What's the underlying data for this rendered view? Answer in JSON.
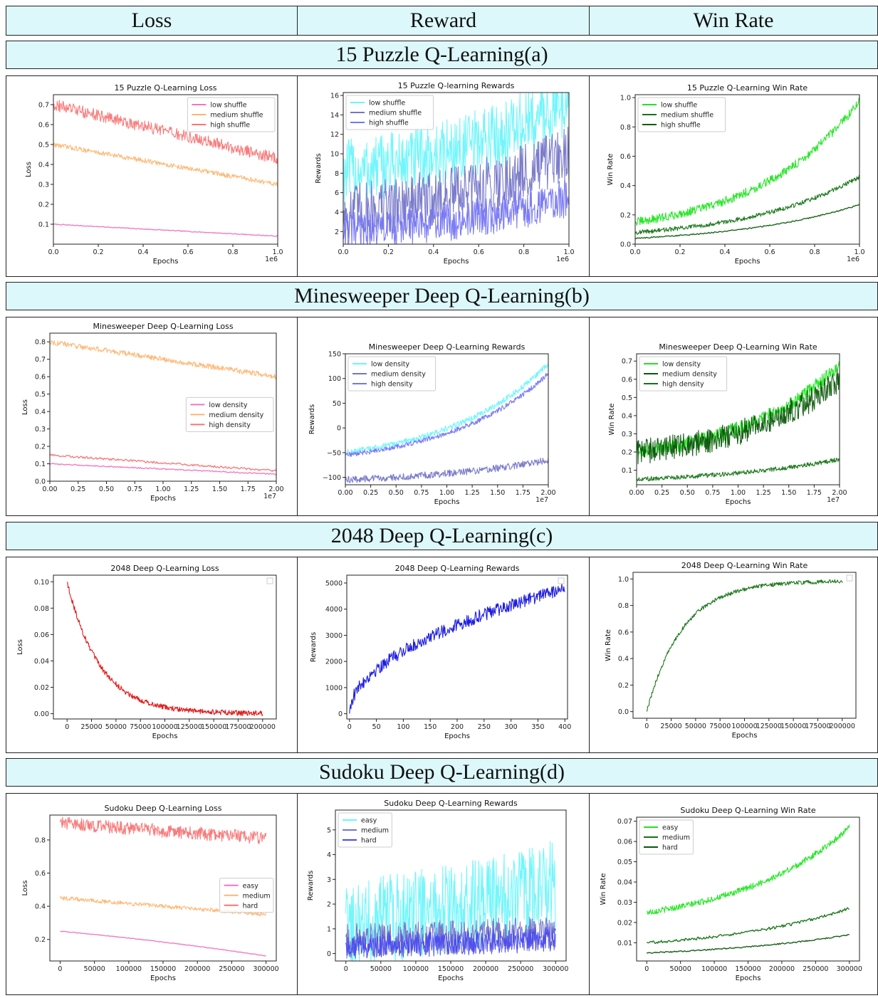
{
  "headers": [
    "Loss",
    "Reward",
    "Win Rate"
  ],
  "sections": [
    "15 Puzzle Q-Learning(a)",
    "Minesweeper Deep Q-Learning(b)",
    "2048 Deep Q-Learning(c)",
    "Sudoku Deep Q-Learning(d)"
  ],
  "chart_data": [
    {
      "id": "a-loss",
      "type": "line",
      "title": "15 Puzzle Q-Learning Loss",
      "xlabel": "Epochs",
      "ylabel": "Loss",
      "xlim": [
        0,
        1
      ],
      "ylim": [
        0.0,
        0.75
      ],
      "xticks": [
        0,
        0.2,
        0.4,
        0.6,
        0.8,
        1.0
      ],
      "xtick_labels": [
        "0.0",
        "0.2",
        "0.4",
        "0.6",
        "0.8",
        "1.0"
      ],
      "yticks": [
        0.1,
        0.2,
        0.3,
        0.4,
        0.5,
        0.6,
        0.7
      ],
      "ytick_labels": [
        "0.1",
        "0.2",
        "0.3",
        "0.4",
        "0.5",
        "0.6",
        "0.7"
      ],
      "x_offset": "1e6",
      "legend_loc": "upper-right",
      "series": [
        {
          "name": "low shuffle",
          "color": "#f075c0",
          "start": 0.1,
          "end": 0.04,
          "noise": 0.002,
          "curve": 0
        },
        {
          "name": "medium shuffle",
          "color": "#fdb673",
          "start": 0.5,
          "end": 0.3,
          "noise": 0.012,
          "curve": 0
        },
        {
          "name": "high shuffle",
          "color": "#f87575",
          "start": 0.7,
          "end": 0.43,
          "noise": 0.03,
          "curve": 0
        }
      ]
    },
    {
      "id": "a-reward",
      "type": "line",
      "title": "15 Puzzle Q-learning Rewards",
      "xlabel": "Epochs",
      "ylabel": "Rewards",
      "xlim": [
        0,
        1
      ],
      "ylim": [
        0.7,
        16.3
      ],
      "xticks": [
        0,
        0.2,
        0.4,
        0.6,
        0.8,
        1.0
      ],
      "xtick_labels": [
        "0.0",
        "0.2",
        "0.4",
        "0.6",
        "0.8",
        "1.0"
      ],
      "yticks": [
        2,
        4,
        6,
        8,
        10,
        12,
        14,
        16
      ],
      "ytick_labels": [
        "2",
        "4",
        "6",
        "8",
        "10",
        "12",
        "14",
        "16"
      ],
      "x_offset": "1e6",
      "legend_loc": "upper-left",
      "series": [
        {
          "name": "low shuffle",
          "color": "#6af5fb",
          "start": 8,
          "end": 15.5,
          "noise": 3.5,
          "curve": 1.5
        },
        {
          "name": "medium shuffle",
          "color": "#7575c8",
          "start": 4,
          "end": 10,
          "noise": 3,
          "curve": 1.5
        },
        {
          "name": "high shuffle",
          "color": "#7575f5",
          "start": 2,
          "end": 5.5,
          "noise": 2,
          "curve": 1.5
        }
      ]
    },
    {
      "id": "a-win",
      "type": "line",
      "title": "15 Puzzle Q-Learning Win Rate",
      "xlabel": "Epochs",
      "ylabel": "Win Rate",
      "xlim": [
        0,
        1
      ],
      "ylim": [
        0.0,
        1.02
      ],
      "xticks": [
        0,
        0.2,
        0.4,
        0.6,
        0.8,
        1.0
      ],
      "xtick_labels": [
        "0.0",
        "0.2",
        "0.4",
        "0.6",
        "0.8",
        "1.0"
      ],
      "yticks": [
        0,
        0.2,
        0.4,
        0.6,
        0.8,
        1.0
      ],
      "ytick_labels": [
        "0.0",
        "0.2",
        "0.4",
        "0.6",
        "0.8",
        "1.0"
      ],
      "x_offset": "1e6",
      "legend_loc": "upper-left",
      "series": [
        {
          "name": "low shuffle",
          "color": "#1fe51f",
          "start": 0.15,
          "end": 0.98,
          "noise": 0.03,
          "curve": 2.2
        },
        {
          "name": "medium shuffle",
          "color": "#147314",
          "start": 0.08,
          "end": 0.46,
          "noise": 0.015,
          "curve": 2
        },
        {
          "name": "high shuffle",
          "color": "#0f5e0f",
          "start": 0.04,
          "end": 0.27,
          "noise": 0.004,
          "curve": 1.8
        }
      ]
    },
    {
      "id": "b-loss",
      "type": "line",
      "title": "Minesweeper Deep Q-Learning Loss",
      "xlabel": "Epochs",
      "ylabel": "Loss",
      "xlim": [
        0,
        2
      ],
      "ylim": [
        0.0,
        0.85
      ],
      "xticks": [
        0,
        0.25,
        0.5,
        0.75,
        1.0,
        1.25,
        1.5,
        1.75,
        2.0
      ],
      "xtick_labels": [
        "0.00",
        "0.25",
        "0.50",
        "0.75",
        "1.00",
        "1.25",
        "1.50",
        "1.75",
        "2.00"
      ],
      "yticks": [
        0,
        0.1,
        0.2,
        0.3,
        0.4,
        0.5,
        0.6,
        0.7,
        0.8
      ],
      "ytick_labels": [
        "0.0",
        "0.1",
        "0.2",
        "0.3",
        "0.4",
        "0.5",
        "0.6",
        "0.7",
        "0.8"
      ],
      "x_offset": "1e7",
      "legend_loc": "center-right",
      "series": [
        {
          "name": "low density",
          "color": "#f075c0",
          "start": 0.1,
          "end": 0.04,
          "noise": 0.003,
          "curve": 0
        },
        {
          "name": "medium density",
          "color": "#fdb673",
          "start": 0.8,
          "end": 0.6,
          "noise": 0.015,
          "curve": 0
        },
        {
          "name": "high density",
          "color": "#f87575",
          "start": 0.15,
          "end": 0.06,
          "noise": 0.006,
          "curve": 0
        }
      ]
    },
    {
      "id": "b-reward",
      "type": "line",
      "title": "Minesweeper Deep Q-Learning Rewards",
      "xlabel": "Epochs",
      "ylabel": "Rewards",
      "xlim": [
        0,
        2
      ],
      "ylim": [
        -115,
        150
      ],
      "xticks": [
        0,
        0.25,
        0.5,
        0.75,
        1.0,
        1.25,
        1.5,
        1.75,
        2.0
      ],
      "xtick_labels": [
        "0.00",
        "0.25",
        "0.50",
        "0.75",
        "1.00",
        "1.25",
        "1.50",
        "1.75",
        "2.00"
      ],
      "yticks": [
        -100,
        -50,
        0,
        50,
        100,
        150
      ],
      "ytick_labels": [
        "−100",
        "−50",
        "0",
        "50",
        "100",
        "150"
      ],
      "x_offset": "1e7",
      "legend_loc": "upper-left",
      "series": [
        {
          "name": "low density",
          "color": "#6af5fb",
          "start": -50,
          "end": 130,
          "noise": 6,
          "curve": 2
        },
        {
          "name": "medium density",
          "color": "#7575c8",
          "start": -105,
          "end": -65,
          "noise": 7,
          "curve": 1.5
        },
        {
          "name": "high density",
          "color": "#7575f5",
          "start": -55,
          "end": 110,
          "noise": 5,
          "curve": 2
        }
      ]
    },
    {
      "id": "b-win",
      "type": "line",
      "title": "Minesweeper Deep Q-Learning Win Rate",
      "xlabel": "Epochs",
      "ylabel": "Win Rate",
      "xlim": [
        0,
        2
      ],
      "ylim": [
        0.02,
        0.74
      ],
      "xticks": [
        0,
        0.25,
        0.5,
        0.75,
        1.0,
        1.25,
        1.5,
        1.75,
        2.0
      ],
      "xtick_labels": [
        "0.00",
        "0.25",
        "0.50",
        "0.75",
        "1.00",
        "1.25",
        "1.50",
        "1.75",
        "2.00"
      ],
      "yticks": [
        0.1,
        0.2,
        0.3,
        0.4,
        0.5,
        0.6,
        0.7
      ],
      "ytick_labels": [
        "0.1",
        "0.2",
        "0.3",
        "0.4",
        "0.5",
        "0.6",
        "0.7"
      ],
      "x_offset": "1e7",
      "legend_loc": "upper-left",
      "series": [
        {
          "name": "low density",
          "color": "#1fe51f",
          "start": 0.2,
          "end": 0.68,
          "noise": 0.04,
          "curve": 2
        },
        {
          "name": "medium density",
          "color": "#0a570a",
          "start": 0.2,
          "end": 0.6,
          "noise": 0.07,
          "curve": 2
        },
        {
          "name": "high density",
          "color": "#147314",
          "start": 0.05,
          "end": 0.16,
          "noise": 0.012,
          "curve": 1.5
        }
      ]
    },
    {
      "id": "c-loss",
      "type": "line",
      "title": "2048 Deep Q-Learning Loss",
      "xlabel": "Epochs",
      "ylabel": "Loss",
      "xlim": [
        -14000,
        214000
      ],
      "ylim": [
        -0.004,
        0.105
      ],
      "xticks": [
        0,
        25000,
        50000,
        75000,
        100000,
        125000,
        150000,
        175000,
        200000
      ],
      "xtick_labels": [
        "0",
        "25000",
        "50000",
        "75000",
        "100000",
        "125000",
        "150000",
        "175000",
        "200000"
      ],
      "yticks": [
        0,
        0.02,
        0.04,
        0.06,
        0.08,
        0.1
      ],
      "ytick_labels": [
        "0.00",
        "0.02",
        "0.04",
        "0.06",
        "0.08",
        "0.10"
      ],
      "x_offset": "",
      "legend_loc": "upper-right",
      "series": [
        {
          "name": "",
          "color": "#dd1111",
          "shape": "decay",
          "start": 0.1,
          "end": 0.0,
          "rate": 6,
          "noise": 0.002
        }
      ]
    },
    {
      "id": "c-reward",
      "type": "line",
      "title": "2048 Deep Q-Learning Rewards",
      "xlabel": "Epochs",
      "ylabel": "Rewards",
      "xlim": [
        -5,
        405
      ],
      "ylim": [
        -200,
        5300
      ],
      "xticks": [
        0,
        50,
        100,
        150,
        200,
        250,
        300,
        350,
        400
      ],
      "xtick_labels": [
        "0",
        "50",
        "100",
        "150",
        "200",
        "250",
        "300",
        "350",
        "400"
      ],
      "yticks": [
        0,
        1000,
        2000,
        3000,
        4000,
        5000
      ],
      "ytick_labels": [
        "0",
        "1000",
        "2000",
        "3000",
        "4000",
        "5000"
      ],
      "x_offset": "",
      "legend_loc": "upper-right",
      "series": [
        {
          "name": "",
          "color": "#1111dd",
          "shape": "sqrt",
          "start": 0,
          "end": 4800,
          "noise": 250,
          "xmax": 400
        }
      ]
    },
    {
      "id": "c-win",
      "type": "line",
      "title": "2048 Deep Q-Learning Win Rate",
      "xlabel": "Epochs",
      "ylabel": "Win Rate",
      "xlim": [
        -14000,
        214000
      ],
      "ylim": [
        -0.05,
        1.05
      ],
      "xticks": [
        0,
        25000,
        50000,
        75000,
        100000,
        125000,
        150000,
        175000,
        200000
      ],
      "xtick_labels": [
        "0",
        "25000",
        "50000",
        "75000",
        "100000",
        "125000",
        "150000",
        "175000",
        "200000"
      ],
      "yticks": [
        0,
        0.2,
        0.4,
        0.6,
        0.8,
        1.0
      ],
      "ytick_labels": [
        "0.0",
        "0.2",
        "0.4",
        "0.6",
        "0.8",
        "1.0"
      ],
      "x_offset": "",
      "legend_loc": "upper-right",
      "series": [
        {
          "name": "",
          "color": "#147314",
          "shape": "saturate",
          "start": 0,
          "end": 0.985,
          "rate": 5.5,
          "noise": 0.015
        }
      ]
    },
    {
      "id": "d-loss",
      "type": "line",
      "title": "Sudoku Deep Q-Learning Loss",
      "xlabel": "Epochs",
      "ylabel": "Loss",
      "xlim": [
        -15000,
        315000
      ],
      "ylim": [
        0.07,
        0.95
      ],
      "xticks": [
        0,
        50000,
        100000,
        150000,
        200000,
        250000,
        300000
      ],
      "xtick_labels": [
        "0",
        "50000",
        "100000",
        "150000",
        "200000",
        "250000",
        "300000"
      ],
      "yticks": [
        0.2,
        0.4,
        0.6,
        0.8
      ],
      "ytick_labels": [
        "0.2",
        "0.4",
        "0.6",
        "0.8"
      ],
      "x_offset": "",
      "legend_loc": "center-right",
      "series": [
        {
          "name": "easy",
          "color": "#f075c0",
          "start": 0.25,
          "end": 0.1,
          "noise": 0.002,
          "curve": 0.5
        },
        {
          "name": "medium",
          "color": "#fdb673",
          "start": 0.45,
          "end": 0.35,
          "noise": 0.012,
          "curve": 0
        },
        {
          "name": "hard",
          "color": "#f87575",
          "start": 0.9,
          "end": 0.81,
          "noise": 0.04,
          "curve": 0
        }
      ]
    },
    {
      "id": "d-reward",
      "type": "line",
      "title": "Sudoku Deep Q-Learning Rewards",
      "xlabel": "Epochs",
      "ylabel": "Rewards",
      "xlim": [
        -15000,
        315000
      ],
      "ylim": [
        -0.3,
        5.8
      ],
      "xticks": [
        0,
        50000,
        100000,
        150000,
        200000,
        250000,
        300000
      ],
      "xtick_labels": [
        "0",
        "50000",
        "100000",
        "150000",
        "200000",
        "250000",
        "300000"
      ],
      "yticks": [
        0,
        1,
        2,
        3,
        4,
        5
      ],
      "ytick_labels": [
        "0",
        "1",
        "2",
        "3",
        "4",
        "5"
      ],
      "x_offset": "",
      "legend_loc": "upper-left",
      "series": [
        {
          "name": "easy",
          "color": "#6af5fb",
          "start": 1.2,
          "end": 2.8,
          "noise": 1.8,
          "curve": 1
        },
        {
          "name": "medium",
          "color": "#7575c8",
          "start": 0.5,
          "end": 0.9,
          "noise": 0.7,
          "curve": 1
        },
        {
          "name": "hard",
          "color": "#4a4af0",
          "start": 0.3,
          "end": 0.6,
          "noise": 0.5,
          "curve": 1
        }
      ]
    },
    {
      "id": "d-win",
      "type": "line",
      "title": "Sudoku Deep Q-Learning Win Rate",
      "xlabel": "Epochs",
      "ylabel": "Win Rate",
      "xlim": [
        -15000,
        315000
      ],
      "ylim": [
        0.001,
        0.072
      ],
      "xticks": [
        0,
        50000,
        100000,
        150000,
        200000,
        250000,
        300000
      ],
      "xtick_labels": [
        "0",
        "50000",
        "100000",
        "150000",
        "200000",
        "250000",
        "300000"
      ],
      "yticks": [
        0.01,
        0.02,
        0.03,
        0.04,
        0.05,
        0.06,
        0.07
      ],
      "ytick_labels": [
        "0.01",
        "0.02",
        "0.03",
        "0.04",
        "0.05",
        "0.06",
        "0.07"
      ],
      "x_offset": "",
      "legend_loc": "upper-left",
      "series": [
        {
          "name": "easy",
          "color": "#1fe51f",
          "start": 0.025,
          "end": 0.067,
          "noise": 0.0015,
          "curve": 1.8
        },
        {
          "name": "medium",
          "color": "#147314",
          "start": 0.01,
          "end": 0.027,
          "noise": 0.0007,
          "curve": 1.6
        },
        {
          "name": "hard",
          "color": "#0a570a",
          "start": 0.005,
          "end": 0.014,
          "noise": 0.0003,
          "curve": 1.4
        }
      ]
    }
  ]
}
